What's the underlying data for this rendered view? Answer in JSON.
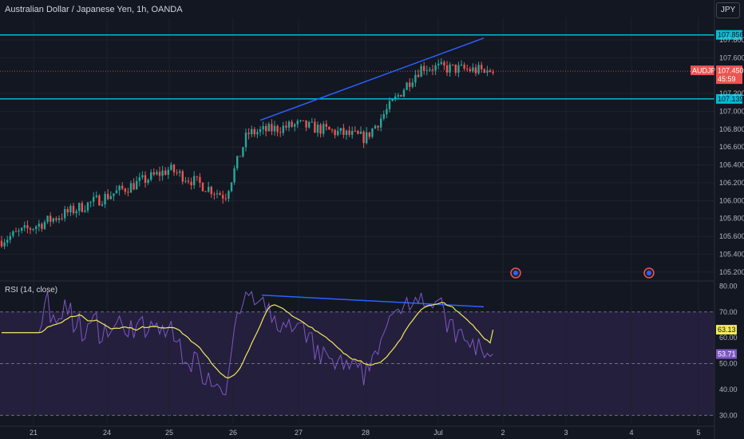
{
  "header": {
    "symbol_title": "Australian Dollar / Japanese Yen, 1h, OANDA",
    "currency_button": "JPY"
  },
  "rsi_panel": {
    "title": "RSI (14, close)"
  },
  "colors": {
    "background": "#131722",
    "up": "#26a69a",
    "down": "#ef5350",
    "trend_line": "#2962ff",
    "horizontal_level": "#00bcd4",
    "rsi_line": "#7e57c2",
    "rsi_ma": "#f2e85c",
    "rsi_band": "#241f3d"
  },
  "chart_data": [
    {
      "type": "candlestick",
      "instrument": "AUDJPY",
      "timeframe": "1h",
      "y_axis_ticks": [
        105.2,
        105.4,
        105.6,
        105.8,
        106.0,
        106.2,
        106.4,
        106.6,
        106.8,
        107.0,
        107.2,
        107.6,
        107.8
      ],
      "ylim": [
        105.1,
        108.05
      ],
      "x_axis_ticks": [
        "21",
        "24",
        "25",
        "26",
        "27",
        "28",
        "Jul",
        "2",
        "3",
        "4",
        "5"
      ],
      "horizontal_levels": [
        107.856,
        107.139
      ],
      "last_price_label": {
        "symbol": "AUDJPY",
        "price": 107.45,
        "countdown": "45:59"
      },
      "trend_line": {
        "from": [
          "26",
          106.9
        ],
        "to": [
          "Jul",
          107.82
        ]
      },
      "series_anchors": [
        {
          "x": "21",
          "price": 105.55
        },
        {
          "x": "24",
          "price": 106.05
        },
        {
          "x": "25",
          "price": 106.35
        },
        {
          "x": "26",
          "price": 106.05
        },
        {
          "x": "26",
          "price": 106.75
        },
        {
          "x": "27",
          "price": 106.85
        },
        {
          "x": "28",
          "price": 106.7
        },
        {
          "x": "28",
          "price": 107.4
        },
        {
          "x": "Jul",
          "price": 107.5
        },
        {
          "x": "Jul",
          "price": 107.45
        }
      ]
    },
    {
      "type": "line",
      "indicator": "RSI (14, close)",
      "y_axis_ticks": [
        80.0,
        70.0,
        60.0,
        50.0,
        40.0,
        30.0
      ],
      "ylim": [
        27,
        82
      ],
      "levels": [
        70,
        50,
        30
      ],
      "current_values": {
        "rsi_ma": 63.13,
        "rsi": 53.71
      },
      "trend_line": {
        "from": [
          "26",
          76.5
        ],
        "to": [
          "Jul",
          72
        ]
      }
    }
  ]
}
